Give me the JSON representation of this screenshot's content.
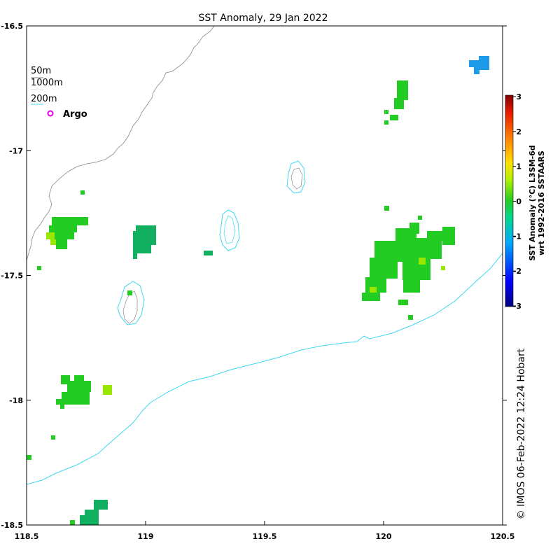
{
  "title": "SST Anomaly, 29 Jan 2022",
  "axes": {
    "x_range": [
      118.5,
      120.5
    ],
    "y_range": [
      -18.5,
      -16.5
    ],
    "x_ticks": [
      {
        "value": 118.5,
        "label": "118.5"
      },
      {
        "value": 119,
        "label": "119"
      },
      {
        "value": 119.5,
        "label": "119.5"
      },
      {
        "value": 120,
        "label": "120"
      },
      {
        "value": 120.5,
        "label": "120.5"
      }
    ],
    "y_ticks": [
      {
        "value": -16.5,
        "label": "-16.5"
      },
      {
        "value": -17,
        "label": "-17"
      },
      {
        "value": -17.5,
        "label": "-17.5"
      },
      {
        "value": -18,
        "label": "-18"
      },
      {
        "value": -18.5,
        "label": "-18.5"
      }
    ]
  },
  "legend": {
    "items": [
      {
        "label": "50m",
        "line_color": "#888888"
      },
      {
        "label": "1000m",
        "line_color": "#dddddd"
      },
      {
        "label": "200m",
        "line_color": "#3fd8f0"
      }
    ],
    "argo_label": "Argo",
    "argo_color": "#e000e0"
  },
  "colorbar": {
    "label_line1": "SST Anomaly (°C) L3SM-6d",
    "label_line2": "wrt 1992-2016 SSTAARS",
    "ticks": [
      "3",
      "2",
      "1",
      "0",
      "-1",
      "-2",
      "-3"
    ],
    "range": [
      -3,
      3
    ]
  },
  "credit": "© IMOS 06-Feb-2022 12:24 Hobart",
  "colors": {
    "contour_200m": "#3fd8f0",
    "coast": "#888888",
    "anomaly_green": "#22cc22",
    "anomaly_lime": "#99e600",
    "anomaly_teal": "#11b060",
    "anomaly_blue": "#1e9be8"
  }
}
